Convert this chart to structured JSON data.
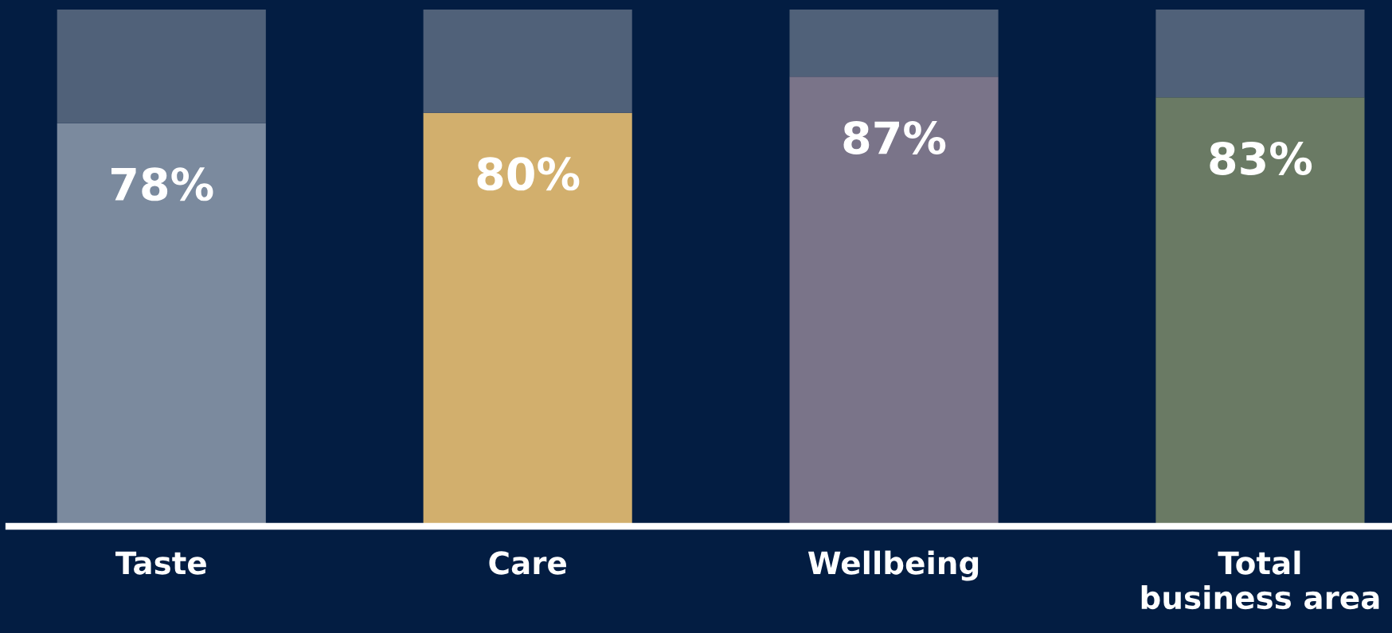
{
  "chart_data": {
    "type": "bar",
    "stacked": true,
    "categories": [
      "Taste",
      "Care",
      "Wellbeing",
      "Total\nbusiness area"
    ],
    "series": [
      {
        "colors": [
          "#7b8a9e",
          "#d2af6d",
          "#7a7489",
          "#6a7a64"
        ],
        "values": [
          78,
          80,
          87,
          83
        ],
        "value_labels": [
          "78%",
          "80%",
          "87%",
          "83%"
        ]
      },
      {
        "color": "#506179",
        "values": [
          22,
          20,
          13,
          17
        ]
      }
    ],
    "ylim": [
      0,
      100
    ],
    "tick_labels": "x",
    "grid": false,
    "legend": false
  }
}
